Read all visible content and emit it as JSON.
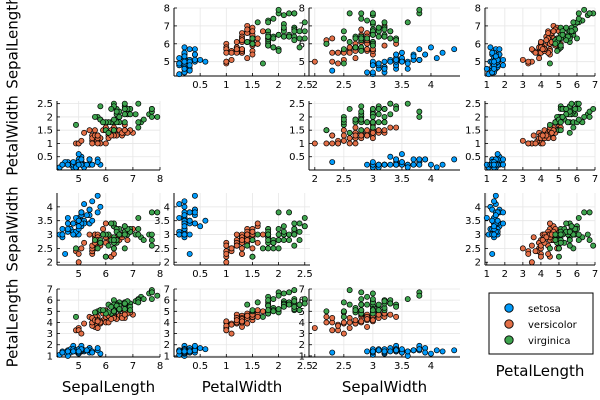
{
  "chart_data": {
    "type": "scatter",
    "title": "",
    "variables": [
      "SepalLength",
      "PetalWidth",
      "SepalWidth",
      "PetalLength"
    ],
    "row_labels": [
      "SepalLength",
      "PetalWidth",
      "SepalWidth",
      "PetalLength"
    ],
    "column_labels": [
      "SepalLength",
      "PetalWidth",
      "SepalWidth",
      "PetalLength"
    ],
    "axes": {
      "SepalLength": {
        "range": [
          4.2,
          8.0
        ],
        "ticks": [
          5,
          6,
          7,
          8
        ]
      },
      "PetalWidth": {
        "range": [
          0.0,
          2.6
        ],
        "ticks": [
          0.5,
          1.0,
          1.5,
          2.0,
          2.5
        ]
      },
      "SepalWidth": {
        "range": [
          1.9,
          4.5
        ],
        "ticks": [
          2.0,
          2.5,
          3.0,
          3.5,
          4.0
        ]
      },
      "PetalLength": {
        "range": [
          0.9,
          7.0
        ],
        "ticks": [
          1,
          2,
          3,
          4,
          5,
          6,
          7
        ]
      }
    },
    "grid": true,
    "legend_position": "bottom-right",
    "legend": [
      "setosa",
      "versicolor",
      "virginica"
    ],
    "colors": {
      "setosa": "#009AFA",
      "versicolor": "#E36F47",
      "virginica": "#3EA44E"
    },
    "series": [
      {
        "name": "setosa",
        "points": [
          [
            5.1,
            0.2,
            3.5,
            1.4
          ],
          [
            4.9,
            0.2,
            3.0,
            1.4
          ],
          [
            4.7,
            0.2,
            3.2,
            1.3
          ],
          [
            4.6,
            0.2,
            3.1,
            1.5
          ],
          [
            5.0,
            0.2,
            3.6,
            1.4
          ],
          [
            5.4,
            0.4,
            3.9,
            1.7
          ],
          [
            4.6,
            0.3,
            3.4,
            1.4
          ],
          [
            5.0,
            0.2,
            3.4,
            1.5
          ],
          [
            4.4,
            0.2,
            2.9,
            1.4
          ],
          [
            4.9,
            0.1,
            3.1,
            1.5
          ],
          [
            5.4,
            0.2,
            3.7,
            1.5
          ],
          [
            4.8,
            0.2,
            3.4,
            1.6
          ],
          [
            4.8,
            0.1,
            3.0,
            1.4
          ],
          [
            4.3,
            0.1,
            3.0,
            1.1
          ],
          [
            5.8,
            0.2,
            4.0,
            1.2
          ],
          [
            5.7,
            0.4,
            4.4,
            1.5
          ],
          [
            5.4,
            0.4,
            3.9,
            1.3
          ],
          [
            5.1,
            0.3,
            3.5,
            1.4
          ],
          [
            5.7,
            0.3,
            3.8,
            1.7
          ],
          [
            5.1,
            0.3,
            3.8,
            1.5
          ],
          [
            5.4,
            0.2,
            3.4,
            1.7
          ],
          [
            5.1,
            0.4,
            3.7,
            1.5
          ],
          [
            4.6,
            0.2,
            3.6,
            1.0
          ],
          [
            5.1,
            0.5,
            3.3,
            1.7
          ],
          [
            4.8,
            0.2,
            3.4,
            1.9
          ],
          [
            5.0,
            0.2,
            3.0,
            1.6
          ],
          [
            5.0,
            0.4,
            3.4,
            1.6
          ],
          [
            5.2,
            0.2,
            3.5,
            1.5
          ],
          [
            5.2,
            0.2,
            3.4,
            1.4
          ],
          [
            4.7,
            0.2,
            3.2,
            1.6
          ],
          [
            4.8,
            0.2,
            3.1,
            1.6
          ],
          [
            5.4,
            0.4,
            3.4,
            1.5
          ],
          [
            5.2,
            0.1,
            4.1,
            1.5
          ],
          [
            5.5,
            0.2,
            4.2,
            1.4
          ],
          [
            4.9,
            0.2,
            3.1,
            1.5
          ],
          [
            5.0,
            0.2,
            3.2,
            1.2
          ],
          [
            5.5,
            0.2,
            3.5,
            1.3
          ],
          [
            4.9,
            0.1,
            3.6,
            1.4
          ],
          [
            4.4,
            0.2,
            3.0,
            1.3
          ],
          [
            5.1,
            0.2,
            3.4,
            1.5
          ],
          [
            5.0,
            0.3,
            3.5,
            1.3
          ],
          [
            4.5,
            0.3,
            2.3,
            1.3
          ],
          [
            4.4,
            0.2,
            3.2,
            1.3
          ],
          [
            5.0,
            0.6,
            3.5,
            1.6
          ],
          [
            5.1,
            0.4,
            3.8,
            1.9
          ],
          [
            4.8,
            0.3,
            3.0,
            1.4
          ],
          [
            5.1,
            0.2,
            3.8,
            1.6
          ],
          [
            4.6,
            0.2,
            3.2,
            1.4
          ],
          [
            5.3,
            0.2,
            3.7,
            1.5
          ],
          [
            5.0,
            0.2,
            3.3,
            1.4
          ]
        ]
      },
      {
        "name": "versicolor",
        "points": [
          [
            7.0,
            1.4,
            3.2,
            4.7
          ],
          [
            6.4,
            1.5,
            3.2,
            4.5
          ],
          [
            6.9,
            1.5,
            3.1,
            4.9
          ],
          [
            5.5,
            1.3,
            2.3,
            4.0
          ],
          [
            6.5,
            1.5,
            2.8,
            4.6
          ],
          [
            5.7,
            1.3,
            2.8,
            4.5
          ],
          [
            6.3,
            1.6,
            3.3,
            4.7
          ],
          [
            4.9,
            1.0,
            2.4,
            3.3
          ],
          [
            6.6,
            1.3,
            2.9,
            4.6
          ],
          [
            5.2,
            1.4,
            2.7,
            3.9
          ],
          [
            5.0,
            1.0,
            2.0,
            3.5
          ],
          [
            5.9,
            1.5,
            3.0,
            4.2
          ],
          [
            6.0,
            1.0,
            2.2,
            4.0
          ],
          [
            6.1,
            1.4,
            2.9,
            4.7
          ],
          [
            5.6,
            1.3,
            2.9,
            3.6
          ],
          [
            6.7,
            1.4,
            3.1,
            4.4
          ],
          [
            5.6,
            1.5,
            3.0,
            4.5
          ],
          [
            5.8,
            1.0,
            2.7,
            4.1
          ],
          [
            6.2,
            1.5,
            2.2,
            4.5
          ],
          [
            5.6,
            1.1,
            2.5,
            3.9
          ],
          [
            5.9,
            1.8,
            3.2,
            4.8
          ],
          [
            6.1,
            1.3,
            2.8,
            4.0
          ],
          [
            6.3,
            1.5,
            2.5,
            4.9
          ],
          [
            6.1,
            1.2,
            2.8,
            4.7
          ],
          [
            6.4,
            1.3,
            2.9,
            4.3
          ],
          [
            6.6,
            1.4,
            3.0,
            4.4
          ],
          [
            6.8,
            1.4,
            2.8,
            4.8
          ],
          [
            6.7,
            1.7,
            3.0,
            5.0
          ],
          [
            6.0,
            1.5,
            2.9,
            4.5
          ],
          [
            5.7,
            1.0,
            2.6,
            3.5
          ],
          [
            5.5,
            1.1,
            2.4,
            3.8
          ],
          [
            5.5,
            1.0,
            2.4,
            3.7
          ],
          [
            5.8,
            1.2,
            2.7,
            3.9
          ],
          [
            6.0,
            1.6,
            2.7,
            5.1
          ],
          [
            5.4,
            1.5,
            3.0,
            4.5
          ],
          [
            6.0,
            1.6,
            3.4,
            4.5
          ],
          [
            6.7,
            1.5,
            3.1,
            4.7
          ],
          [
            6.3,
            1.3,
            2.3,
            4.4
          ],
          [
            5.6,
            1.3,
            3.0,
            4.1
          ],
          [
            5.5,
            1.3,
            2.5,
            4.0
          ],
          [
            5.5,
            1.2,
            2.6,
            4.4
          ],
          [
            6.1,
            1.4,
            3.0,
            4.6
          ],
          [
            5.8,
            1.2,
            2.6,
            4.0
          ],
          [
            5.0,
            1.0,
            2.3,
            3.3
          ],
          [
            5.6,
            1.3,
            2.7,
            4.2
          ],
          [
            5.7,
            1.2,
            3.0,
            4.2
          ],
          [
            5.7,
            1.3,
            2.9,
            4.2
          ],
          [
            6.2,
            1.3,
            2.9,
            4.3
          ],
          [
            5.1,
            1.1,
            2.5,
            3.0
          ],
          [
            5.7,
            1.3,
            2.8,
            4.1
          ]
        ]
      },
      {
        "name": "virginica",
        "points": [
          [
            6.3,
            2.5,
            3.3,
            6.0
          ],
          [
            5.8,
            1.9,
            2.7,
            5.1
          ],
          [
            7.1,
            2.1,
            3.0,
            5.9
          ],
          [
            6.3,
            1.8,
            2.9,
            5.6
          ],
          [
            6.5,
            2.2,
            3.0,
            5.8
          ],
          [
            7.6,
            2.1,
            3.0,
            6.6
          ],
          [
            4.9,
            1.7,
            2.5,
            4.5
          ],
          [
            7.3,
            1.8,
            2.9,
            6.3
          ],
          [
            6.7,
            1.8,
            2.5,
            5.8
          ],
          [
            7.2,
            2.5,
            3.6,
            6.1
          ],
          [
            6.5,
            2.0,
            3.2,
            5.1
          ],
          [
            6.4,
            1.9,
            2.7,
            5.3
          ],
          [
            6.8,
            2.1,
            3.0,
            5.5
          ],
          [
            5.7,
            2.0,
            2.5,
            5.0
          ],
          [
            5.8,
            2.4,
            2.8,
            5.1
          ],
          [
            6.4,
            2.3,
            3.2,
            5.3
          ],
          [
            6.5,
            1.8,
            3.0,
            5.5
          ],
          [
            7.7,
            2.2,
            3.8,
            6.7
          ],
          [
            7.7,
            2.3,
            2.6,
            6.9
          ],
          [
            6.0,
            1.5,
            2.2,
            5.0
          ],
          [
            6.9,
            2.3,
            3.2,
            5.7
          ],
          [
            5.6,
            2.0,
            2.8,
            4.9
          ],
          [
            7.7,
            2.0,
            2.8,
            6.7
          ],
          [
            6.3,
            1.8,
            2.7,
            4.9
          ],
          [
            6.7,
            2.1,
            3.3,
            5.7
          ],
          [
            7.2,
            1.8,
            3.2,
            6.0
          ],
          [
            6.2,
            1.8,
            2.8,
            4.8
          ],
          [
            6.1,
            1.8,
            3.0,
            4.9
          ],
          [
            6.4,
            2.1,
            2.8,
            5.6
          ],
          [
            7.2,
            1.6,
            3.0,
            5.8
          ],
          [
            7.4,
            1.9,
            2.8,
            6.1
          ],
          [
            7.9,
            2.0,
            3.8,
            6.4
          ],
          [
            6.4,
            2.2,
            2.8,
            5.6
          ],
          [
            6.3,
            1.5,
            2.8,
            5.1
          ],
          [
            6.1,
            1.4,
            2.6,
            5.6
          ],
          [
            7.7,
            2.3,
            3.0,
            6.1
          ],
          [
            6.3,
            2.4,
            3.4,
            5.6
          ],
          [
            6.4,
            1.8,
            3.1,
            5.5
          ],
          [
            6.0,
            1.8,
            3.0,
            4.8
          ],
          [
            6.9,
            2.1,
            3.1,
            5.4
          ],
          [
            6.7,
            2.4,
            3.1,
            5.6
          ],
          [
            6.9,
            2.3,
            3.1,
            5.1
          ],
          [
            5.8,
            1.9,
            2.7,
            5.1
          ],
          [
            6.8,
            2.3,
            3.2,
            5.9
          ],
          [
            6.7,
            2.5,
            3.3,
            5.7
          ],
          [
            6.7,
            2.3,
            3.0,
            5.2
          ],
          [
            6.3,
            1.9,
            2.5,
            5.0
          ],
          [
            6.5,
            2.0,
            3.0,
            5.2
          ],
          [
            6.2,
            2.3,
            3.4,
            5.4
          ],
          [
            5.9,
            1.8,
            3.0,
            5.1
          ]
        ]
      }
    ]
  }
}
